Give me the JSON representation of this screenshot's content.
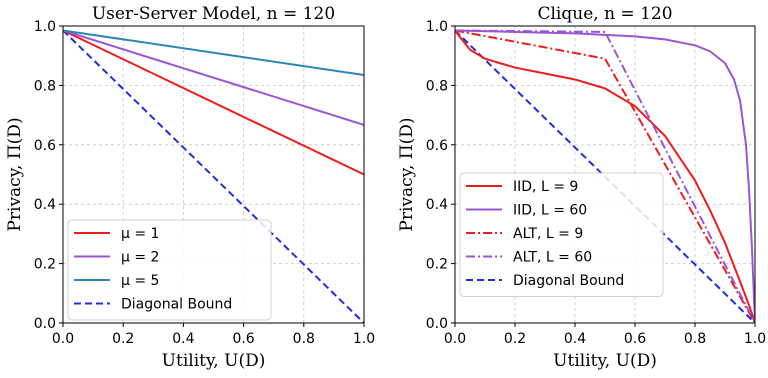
{
  "chart_data": [
    {
      "type": "line",
      "title": "User-Server Model, n = 120",
      "xlabel": "Utility, U(D)",
      "ylabel": "Privacy, Π(D)",
      "xlim": [
        0,
        1
      ],
      "ylim": [
        0,
        1
      ],
      "xticks": [
        "0.0",
        "0.2",
        "0.4",
        "0.6",
        "0.8",
        "1.0"
      ],
      "yticks": [
        "0.0",
        "0.2",
        "0.4",
        "0.6",
        "0.8",
        "1.0"
      ],
      "grid": true,
      "legend_position": "lower-left",
      "series": [
        {
          "name": "μ = 1",
          "color": "#ee1c1c",
          "style": "solid",
          "x": [
            0,
            1
          ],
          "y": [
            0.985,
            0.5
          ]
        },
        {
          "name": "μ = 2",
          "color": "#9a55d4",
          "style": "solid",
          "x": [
            0,
            1
          ],
          "y": [
            0.985,
            0.667
          ]
        },
        {
          "name": "μ = 5",
          "color": "#2b86b5",
          "style": "solid",
          "x": [
            0,
            1
          ],
          "y": [
            0.985,
            0.835
          ]
        },
        {
          "name": "Diagonal Bound",
          "color": "#1d2ee0",
          "style": "dashed",
          "x": [
            0,
            1
          ],
          "y": [
            0.985,
            0.0
          ]
        }
      ]
    },
    {
      "type": "line",
      "title": "Clique, n = 120",
      "xlabel": "Utility, U(D)",
      "ylabel": "Privacy, Π(D)",
      "xlim": [
        0,
        1
      ],
      "ylim": [
        0,
        1
      ],
      "xticks": [
        "0.0",
        "0.2",
        "0.4",
        "0.6",
        "0.8",
        "1.0"
      ],
      "yticks": [
        "0.0",
        "0.2",
        "0.4",
        "0.6",
        "0.8",
        "1.0"
      ],
      "grid": true,
      "legend_position": "lower-left",
      "series": [
        {
          "name": "IID, L = 9",
          "color": "#ee1c1c",
          "style": "solid",
          "x": [
            0,
            0.05,
            0.1,
            0.2,
            0.3,
            0.4,
            0.5,
            0.6,
            0.7,
            0.8,
            0.85,
            0.9,
            0.95,
            0.98,
            1.0
          ],
          "y": [
            0.985,
            0.92,
            0.89,
            0.86,
            0.84,
            0.82,
            0.79,
            0.73,
            0.63,
            0.48,
            0.38,
            0.27,
            0.14,
            0.06,
            0.0
          ]
        },
        {
          "name": "IID, L = 60",
          "color": "#9a55d4",
          "style": "solid",
          "x": [
            0,
            0.2,
            0.4,
            0.6,
            0.7,
            0.8,
            0.85,
            0.9,
            0.93,
            0.95,
            0.97,
            0.98,
            0.99,
            1.0
          ],
          "y": [
            0.985,
            0.98,
            0.975,
            0.965,
            0.955,
            0.935,
            0.915,
            0.875,
            0.82,
            0.75,
            0.6,
            0.45,
            0.25,
            0.0
          ]
        },
        {
          "name": "ALT, L = 9",
          "color": "#ee1c1c",
          "style": "dashdot",
          "x": [
            0,
            0.5,
            1.0
          ],
          "y": [
            0.985,
            0.89,
            0.0
          ]
        },
        {
          "name": "ALT, L = 60",
          "color": "#9a55d4",
          "style": "dashdot",
          "x": [
            0,
            0.5,
            1.0
          ],
          "y": [
            0.985,
            0.98,
            0.0
          ]
        },
        {
          "name": "Diagonal Bound",
          "color": "#1d2ee0",
          "style": "dashed",
          "x": [
            0,
            1
          ],
          "y": [
            0.985,
            0.0
          ]
        }
      ]
    }
  ]
}
